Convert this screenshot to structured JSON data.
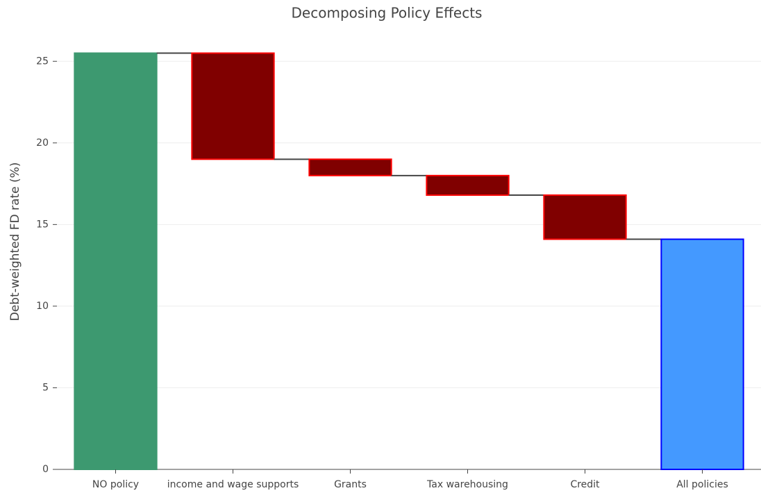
{
  "chart_data": {
    "type": "waterfall",
    "title": "Decomposing Policy Effects",
    "y_label": "Debt-weighted FD rate (%)",
    "categories": [
      "NO policy",
      "income and wage supports",
      "Grants",
      "Tax warehousing",
      "Credit",
      "All policies"
    ],
    "measures": [
      "absolute",
      "relative",
      "relative",
      "relative",
      "relative",
      "total"
    ],
    "values": [
      25.5,
      -6.5,
      -1.0,
      -1.2,
      -2.7,
      14.1
    ],
    "colors": {
      "absolute": {
        "fill": "#3d9970",
        "stroke": "#3d9970"
      },
      "decreasing": {
        "fill": "#800000",
        "stroke": "#ff0000"
      },
      "total": {
        "fill": "#4499ff",
        "stroke": "#0000ff"
      }
    },
    "connector_color": "#444444",
    "ylim": [
      0,
      26.5
    ],
    "yticks": [
      0,
      5,
      10,
      15,
      20,
      25
    ],
    "grid": true
  }
}
